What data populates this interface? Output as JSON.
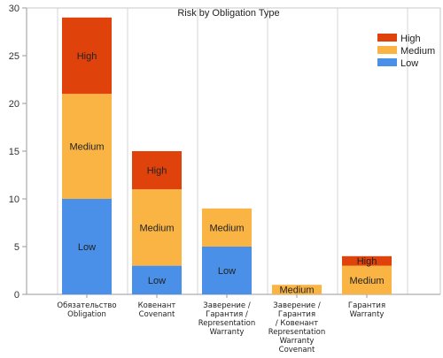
{
  "chart_data": {
    "type": "bar",
    "stacked": true,
    "title": "Risk by Obligation Type",
    "xlabel": "",
    "ylabel": "",
    "ylim": [
      0,
      30
    ],
    "yticks": [
      0,
      5,
      10,
      15,
      20,
      25,
      30
    ],
    "grid": "vertical",
    "legend_position": "top-right",
    "categories": [
      [
        "Обязательство",
        "Obligation"
      ],
      [
        "Ковенант",
        "Covenant"
      ],
      [
        "Заверение /",
        "Гарантия /",
        "Representation",
        "Warranty"
      ],
      [
        "Заверение /",
        "Гарантия",
        "/ Ковенант",
        "Representation",
        "Warranty",
        "Covenant"
      ],
      [
        "Гарантия",
        "Warranty"
      ]
    ],
    "series": [
      {
        "name": "Low",
        "color": "#4a90e8",
        "values": [
          10,
          3,
          5,
          0,
          0
        ],
        "labels": [
          "Low",
          "Low",
          "Low",
          "",
          ""
        ]
      },
      {
        "name": "Medium",
        "color": "#fab444",
        "values": [
          11,
          8,
          4,
          1,
          3
        ],
        "labels": [
          "Medium",
          "Medium",
          "Medium",
          "Medium",
          "Medium"
        ]
      },
      {
        "name": "High",
        "color": "#e0420c",
        "values": [
          8,
          4,
          0,
          0,
          1
        ],
        "labels": [
          "High",
          "High",
          "",
          "",
          "High"
        ]
      }
    ],
    "legend_order": [
      "High",
      "Medium",
      "Low"
    ]
  }
}
